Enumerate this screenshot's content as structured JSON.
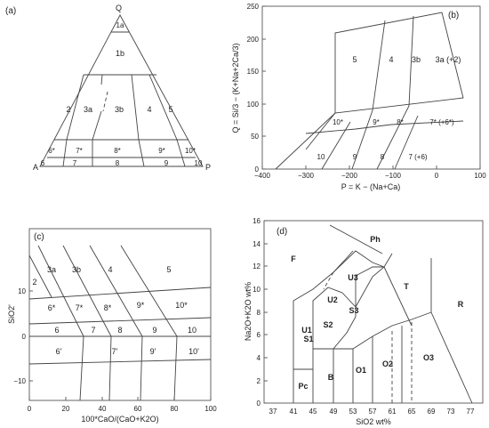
{
  "panels": {
    "a": {
      "label": "(a)",
      "apex_q": "Q",
      "apex_a": "A",
      "apex_p": "P",
      "fields": [
        "1a",
        "1b",
        "2",
        "3a",
        "3b",
        "4",
        "5",
        "6*",
        "7*",
        "8*",
        "9*",
        "10*",
        "6",
        "7",
        "8",
        "9",
        "10"
      ]
    },
    "b": {
      "label": "(b)",
      "ylabel": "Q = Si/3 − (K+Na+2Ca/3)",
      "xlabel": "P = K − (Na+Ca)",
      "yticks": [
        "0",
        "50",
        "100",
        "150",
        "200",
        "250"
      ],
      "xticks": [
        "−400",
        "−300",
        "−200",
        "−100",
        "0",
        "100"
      ],
      "fields": [
        "5",
        "4",
        "3b",
        "3a (+2)",
        "10*",
        "9*",
        "8*",
        "7* (+6*)",
        "10",
        "9",
        "8",
        "7 (+6)"
      ]
    },
    "c": {
      "label": "(c)",
      "ylabel": "SiO2'",
      "xlabel": "100*CaO/(CaO+K2O)",
      "yticks": [
        "−10",
        "0",
        "10"
      ],
      "xticks": [
        "0",
        "20",
        "40",
        "60",
        "80",
        "100"
      ],
      "fields": [
        "3a",
        "3b",
        "4",
        "5",
        "2",
        "6*",
        "7*",
        "8*",
        "9*",
        "10*",
        "6",
        "7",
        "8",
        "9",
        "10",
        "6'",
        "7'",
        "9'",
        "10'"
      ]
    },
    "d": {
      "label": "(d)",
      "ylabel": "Na2O+K2O wt%",
      "xlabel": "SiO2 wt%",
      "yticks": [
        "0",
        "2",
        "4",
        "6",
        "8",
        "10",
        "12",
        "14",
        "16"
      ],
      "xticks": [
        "37",
        "41",
        "45",
        "49",
        "53",
        "57",
        "61",
        "65",
        "69",
        "73",
        "77"
      ],
      "fields": [
        "F",
        "Ph",
        "U3",
        "U2",
        "T",
        "R",
        "U1",
        "S3",
        "S2",
        "S1",
        "O2",
        "O3",
        "O1",
        "B",
        "Pc"
      ]
    }
  }
}
